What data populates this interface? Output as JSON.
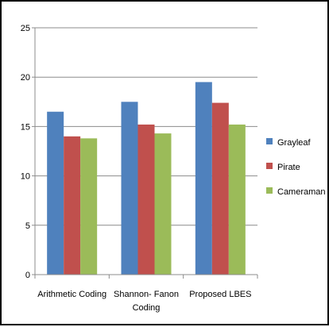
{
  "chart_data": {
    "type": "bar",
    "categories": [
      [
        "Arithmetic Coding"
      ],
      [
        "Shannon- Fanon",
        "Coding"
      ],
      [
        "Proposed LBES"
      ]
    ],
    "series": [
      {
        "name": "Grayleaf",
        "values": [
          16.5,
          17.5,
          19.5
        ],
        "color": "#4f81bd"
      },
      {
        "name": "Pirate",
        "values": [
          14.0,
          15.2,
          17.4
        ],
        "color": "#c0504d"
      },
      {
        "name": "Cameraman",
        "values": [
          13.8,
          14.3,
          15.2
        ],
        "color": "#9bbb59"
      }
    ],
    "ylim": [
      0,
      25
    ],
    "yticks": [
      "0",
      "5",
      "10",
      "15",
      "20",
      "25"
    ],
    "grid": true,
    "legend_position": "right"
  }
}
